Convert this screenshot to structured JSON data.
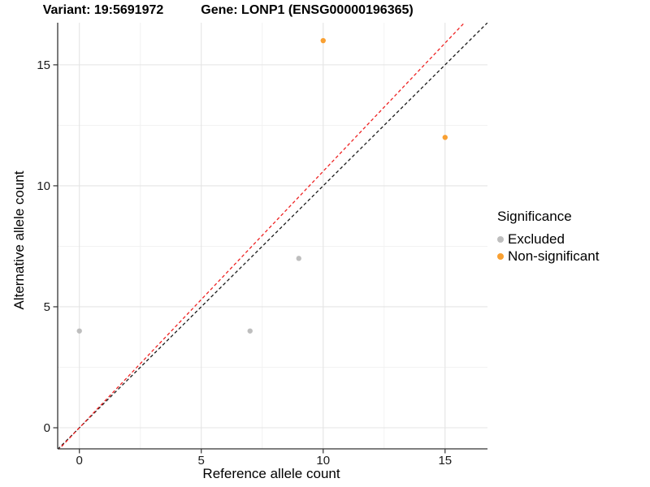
{
  "titles": {
    "variant": "Variant: 19:5691972",
    "gene": "Gene: LONP1 (ENSG00000196365)"
  },
  "legend": {
    "title": "Significance",
    "items": [
      {
        "label": "Excluded",
        "color": "#BEBEBE"
      },
      {
        "label": "Non-significant",
        "color": "#F9A032"
      }
    ]
  },
  "colors": {
    "grid_major": "#E4E4E4",
    "grid_minor": "#F1F1F1",
    "axis_line": "#333333",
    "tick_text": "#1A1A1A",
    "identity_line": "#1A1A1A",
    "fitted_line": "#EE2222",
    "excluded_point": "#BEBEBE",
    "non_significant_point": "#F9A032"
  },
  "chart_data": {
    "type": "scatter",
    "title": "Variant: 19:5691972 / Gene: LONP1 (ENSG00000196365)",
    "xlabel": "Reference allele count",
    "ylabel": "Alternative allele count",
    "xlim": [
      -0.89,
      16.74
    ],
    "ylim": [
      -0.872,
      16.74
    ],
    "x_ticks": [
      0,
      5,
      10,
      15
    ],
    "y_ticks": [
      0,
      5,
      10,
      15
    ],
    "x_minor_ticks": [
      2.5,
      7.5,
      12.5
    ],
    "y_minor_ticks": [
      2.5,
      7.5,
      12.5
    ],
    "grid": true,
    "legend_position": "right",
    "series": [
      {
        "name": "Excluded",
        "color": "#BEBEBE",
        "points": [
          [
            0,
            4
          ],
          [
            7,
            4
          ],
          [
            9,
            7
          ]
        ]
      },
      {
        "name": "Non-significant",
        "color": "#F9A032",
        "points": [
          [
            10,
            16
          ],
          [
            15,
            12
          ]
        ]
      }
    ],
    "lines": [
      {
        "name": "identity-line",
        "slope": 1.0,
        "intercept": 0,
        "color": "#1A1A1A",
        "dash": "4,3"
      },
      {
        "name": "fitted-line",
        "slope": 1.06,
        "intercept": 0,
        "color": "#EE2222",
        "dash": "4,3"
      }
    ]
  }
}
